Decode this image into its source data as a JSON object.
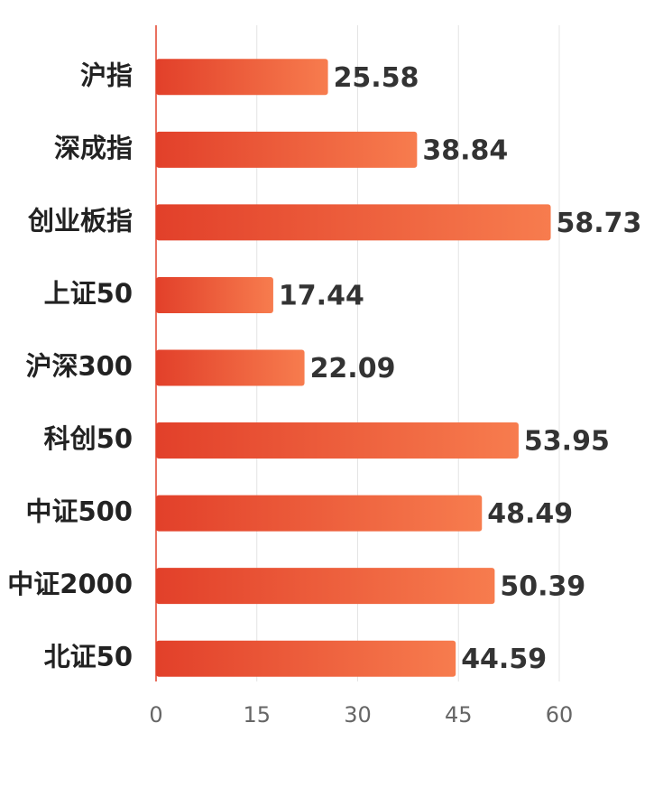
{
  "chart_data": {
    "type": "bar",
    "orientation": "horizontal",
    "categories": [
      "沪指",
      "深成指",
      "创业板指",
      "上证50",
      "沪深300",
      "科创50",
      "中证500",
      "中证2000",
      "北证50"
    ],
    "values": [
      25.58,
      38.84,
      58.73,
      17.44,
      22.09,
      53.95,
      48.49,
      50.39,
      44.59
    ],
    "color": [
      "#e2402a",
      "#f77c4e"
    ],
    "xlim": [
      0,
      60
    ],
    "xticks": [
      0,
      15,
      30,
      45,
      60
    ],
    "grid": true
  }
}
